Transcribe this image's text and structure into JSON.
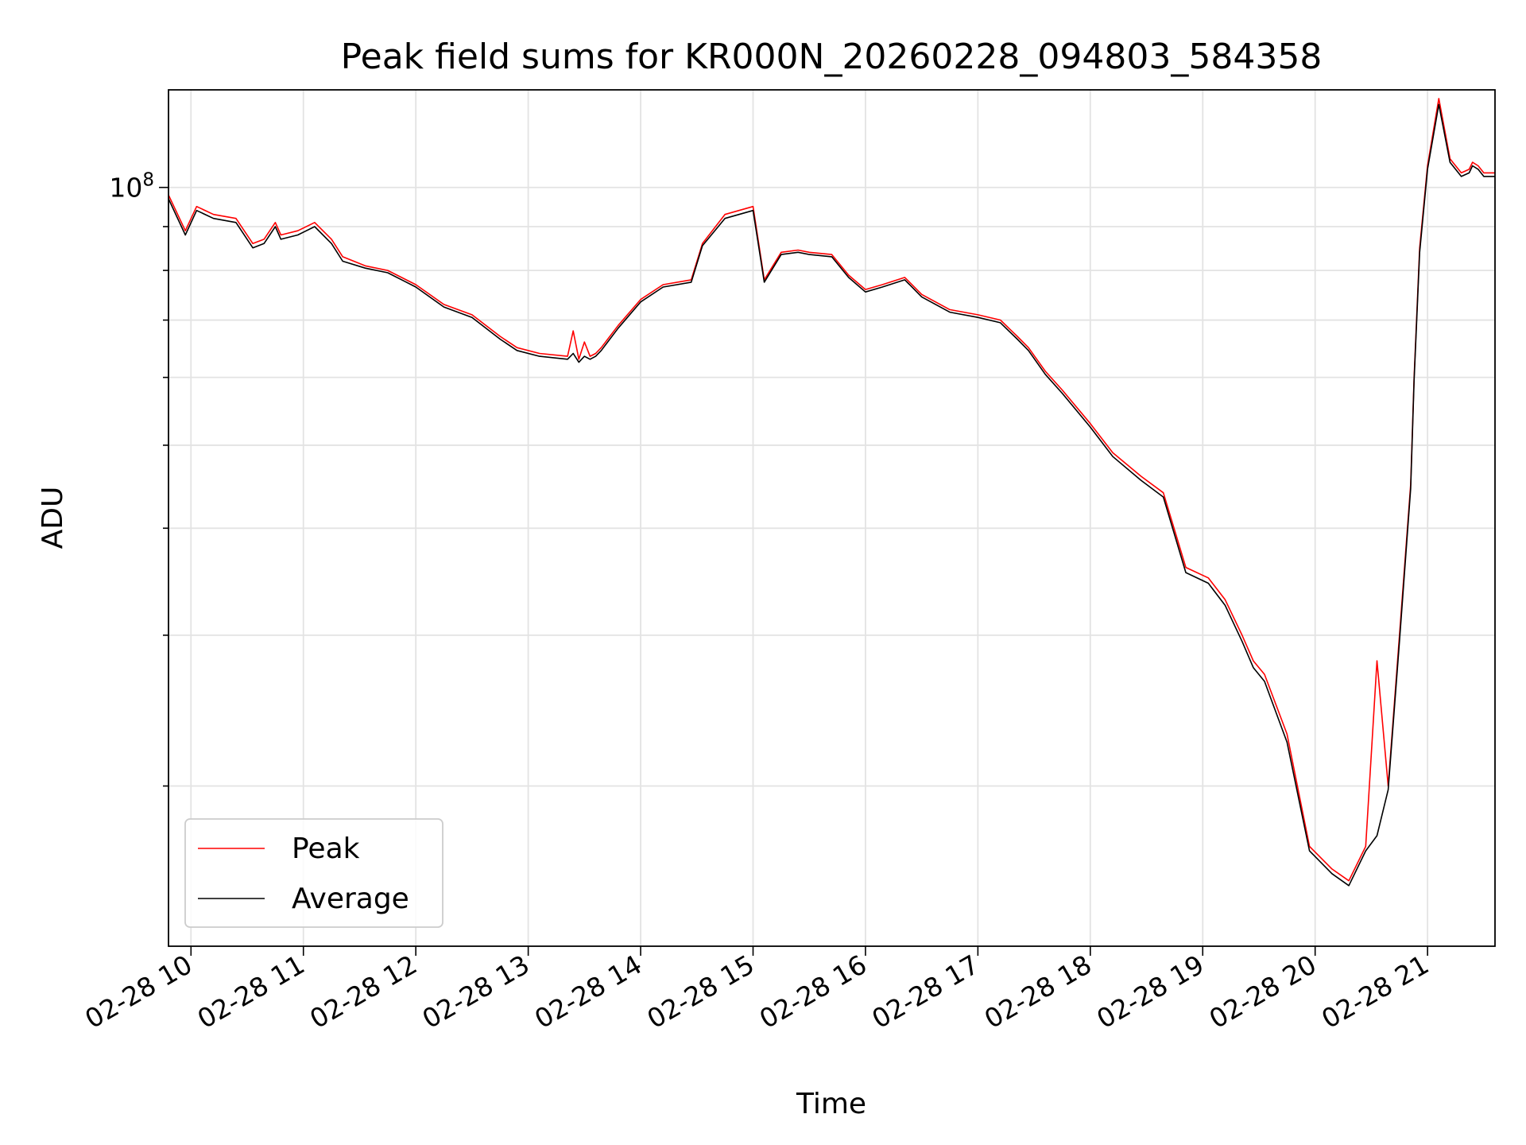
{
  "chart_data": {
    "type": "line",
    "title": "Peak field sums for KR000N_20260228_094803_584358",
    "xlabel": "Time",
    "ylabel": "ADU",
    "xscale": "time",
    "yscale": "log",
    "xlim": [
      9.8,
      21.6
    ],
    "ylim": [
      13000000,
      130000000
    ],
    "x_ticks": [
      {
        "value": 10,
        "label": "02-28 10"
      },
      {
        "value": 11,
        "label": "02-28 11"
      },
      {
        "value": 12,
        "label": "02-28 12"
      },
      {
        "value": 13,
        "label": "02-28 13"
      },
      {
        "value": 14,
        "label": "02-28 14"
      },
      {
        "value": 15,
        "label": "02-28 15"
      },
      {
        "value": 16,
        "label": "02-28 16"
      },
      {
        "value": 17,
        "label": "02-28 17"
      },
      {
        "value": 18,
        "label": "02-28 18"
      },
      {
        "value": 19,
        "label": "02-28 19"
      },
      {
        "value": 20,
        "label": "02-28 20"
      },
      {
        "value": 21,
        "label": "02-28 21"
      }
    ],
    "y_major_ticks": [
      {
        "value": 100000000,
        "base": "10",
        "exponent": "8"
      }
    ],
    "y_minor_ticks": [
      20000000,
      30000000,
      40000000,
      50000000,
      60000000,
      70000000,
      80000000,
      90000000
    ],
    "grid": true,
    "legend": {
      "location": "lower-left",
      "entries": [
        "Peak",
        "Average"
      ]
    },
    "series": [
      {
        "name": "Peak",
        "color": "#ff0000",
        "x": [
          9.8,
          9.95,
          10.05,
          10.2,
          10.4,
          10.55,
          10.65,
          10.75,
          10.8,
          10.95,
          11.1,
          11.25,
          11.35,
          11.55,
          11.75,
          12.0,
          12.25,
          12.5,
          12.75,
          12.9,
          13.1,
          13.35,
          13.4,
          13.45,
          13.5,
          13.55,
          13.6,
          13.65,
          13.8,
          14.0,
          14.2,
          14.45,
          14.55,
          14.75,
          15.0,
          15.1,
          15.25,
          15.4,
          15.5,
          15.7,
          15.85,
          16.0,
          16.15,
          16.35,
          16.5,
          16.75,
          17.0,
          17.2,
          17.35,
          17.45,
          17.6,
          17.75,
          18.0,
          18.2,
          18.45,
          18.65,
          18.85,
          19.05,
          19.2,
          19.35,
          19.45,
          19.55,
          19.75,
          19.95,
          20.15,
          20.3,
          20.45,
          20.55,
          20.65,
          20.75,
          20.85,
          20.88,
          20.93,
          21.0,
          21.1,
          21.2,
          21.3,
          21.37,
          21.4,
          21.45,
          21.5,
          21.6
        ],
        "y": [
          98000000,
          89000000,
          95000000,
          93000000,
          92000000,
          86000000,
          87000000,
          91000000,
          88000000,
          89000000,
          91000000,
          87000000,
          83000000,
          81000000,
          80000000,
          77000000,
          73000000,
          71000000,
          67000000,
          65000000,
          64000000,
          63500000,
          68000000,
          63000000,
          66000000,
          63500000,
          64000000,
          65000000,
          69000000,
          74000000,
          77000000,
          78000000,
          86000000,
          93000000,
          95000000,
          78000000,
          84000000,
          84500000,
          84000000,
          83500000,
          79000000,
          76000000,
          77000000,
          78500000,
          75000000,
          72000000,
          71000000,
          70000000,
          67000000,
          65000000,
          61000000,
          58000000,
          53000000,
          49000000,
          46000000,
          44000000,
          36000000,
          35000000,
          33000000,
          30000000,
          28000000,
          27000000,
          23000000,
          17000000,
          16000000,
          15500000,
          17000000,
          28000000,
          20000000,
          30000000,
          45000000,
          60000000,
          85000000,
          106000000,
          127000000,
          108000000,
          104000000,
          105000000,
          107000000,
          106000000,
          104000000,
          104000000
        ]
      },
      {
        "name": "Average",
        "color": "#000000",
        "x": [
          9.8,
          9.95,
          10.05,
          10.2,
          10.4,
          10.55,
          10.65,
          10.75,
          10.8,
          10.95,
          11.1,
          11.25,
          11.35,
          11.55,
          11.75,
          12.0,
          12.25,
          12.5,
          12.75,
          12.9,
          13.1,
          13.35,
          13.4,
          13.45,
          13.5,
          13.55,
          13.6,
          13.65,
          13.8,
          14.0,
          14.2,
          14.45,
          14.55,
          14.75,
          15.0,
          15.1,
          15.25,
          15.4,
          15.5,
          15.7,
          15.85,
          16.0,
          16.15,
          16.35,
          16.5,
          16.75,
          17.0,
          17.2,
          17.35,
          17.45,
          17.6,
          17.75,
          18.0,
          18.2,
          18.45,
          18.65,
          18.85,
          19.05,
          19.2,
          19.35,
          19.45,
          19.55,
          19.75,
          19.95,
          20.15,
          20.3,
          20.45,
          20.55,
          20.65,
          20.75,
          20.85,
          20.88,
          20.93,
          21.0,
          21.1,
          21.2,
          21.3,
          21.37,
          21.4,
          21.45,
          21.5,
          21.6
        ],
        "y": [
          97000000,
          88000000,
          94000000,
          92000000,
          91000000,
          85000000,
          86000000,
          90000000,
          87000000,
          88000000,
          90000000,
          86000000,
          82000000,
          80500000,
          79500000,
          76500000,
          72500000,
          70500000,
          66500000,
          64500000,
          63500000,
          63000000,
          64000000,
          62500000,
          63500000,
          63000000,
          63500000,
          64500000,
          68500000,
          73500000,
          76500000,
          77500000,
          85500000,
          92000000,
          94000000,
          77500000,
          83500000,
          84000000,
          83500000,
          83000000,
          78500000,
          75500000,
          76500000,
          78000000,
          74500000,
          71500000,
          70500000,
          69500000,
          66500000,
          64500000,
          60500000,
          57500000,
          52500000,
          48500000,
          45500000,
          43500000,
          35500000,
          34500000,
          32500000,
          29500000,
          27500000,
          26500000,
          22500000,
          16800000,
          15800000,
          15300000,
          16800000,
          17500000,
          19800000,
          29500000,
          44500000,
          59500000,
          84000000,
          105000000,
          125000000,
          107000000,
          103000000,
          104000000,
          106000000,
          105000000,
          103000000,
          103000000
        ]
      }
    ]
  }
}
